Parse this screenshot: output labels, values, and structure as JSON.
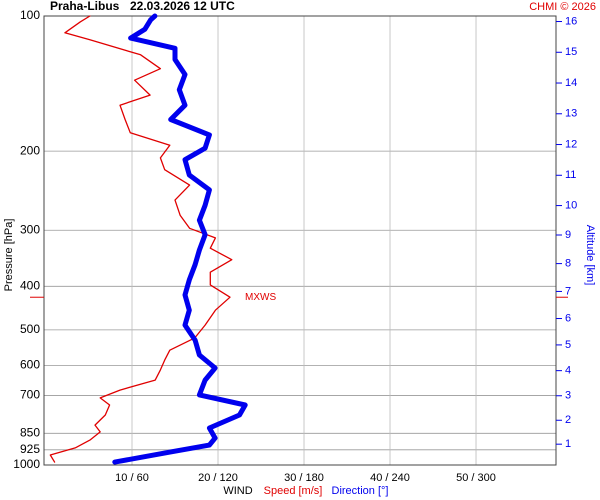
{
  "chart_data": {
    "type": "profile",
    "title": "Praha-Libus",
    "subtitle": "22.03.2026 12 UTC",
    "credit": "CHMI © 2026",
    "ylabel": "Pressure [hPa]",
    "y2label": "Altitude [km]",
    "xlabel": "WIND",
    "ylim": [
      1000,
      100
    ],
    "ylog": true,
    "yticks": [
      100,
      200,
      300,
      400,
      500,
      600,
      700,
      850,
      925,
      1000
    ],
    "y2ticks": [
      1,
      2,
      3,
      4,
      5,
      6,
      7,
      8,
      9,
      10,
      11,
      12,
      13,
      14,
      15,
      16
    ],
    "xlim": [
      0,
      59.3
    ],
    "x2lim": [
      0,
      355.8
    ],
    "xticks": [
      {
        "value": 10,
        "label": "10 / 60"
      },
      {
        "value": 20,
        "label": "20 / 120"
      },
      {
        "value": 30,
        "label": "30 / 180"
      },
      {
        "value": 40,
        "label": "40 / 240"
      },
      {
        "value": 50,
        "label": "50 / 300"
      }
    ],
    "grid": true,
    "series": [
      {
        "name": "Speed [m/s]",
        "color": "#e00000",
        "axis": "x",
        "pressure": [
          985,
          950,
          916,
          880,
          844,
          815,
          774,
          735,
          709,
          681,
          647,
          614,
          584,
          555,
          521,
          488,
          452,
          423,
          397,
          372,
          349,
          329,
          312,
          297,
          278,
          257,
          238,
          220,
          207,
          194,
          182,
          170,
          158,
          150,
          139,
          131,
          122,
          113,
          109,
          103,
          100
        ],
        "values": [
          1,
          0.5,
          3.4,
          5.1,
          6.3,
          5.7,
          6.9,
          7.4,
          6.3,
          8.6,
          12.7,
          13.3,
          13.8,
          14.4,
          17.3,
          18.5,
          19.7,
          21.4,
          19.1,
          19.1,
          21.6,
          19.1,
          19.7,
          16.7,
          15.6,
          15.0,
          16.7,
          13.8,
          13.3,
          14.4,
          9.8,
          9.2,
          8.6,
          12.1,
          10.3,
          13.3,
          11.0,
          5.1,
          2.2,
          4.0,
          5.1
        ]
      },
      {
        "name": "Direction [°]",
        "color": "#0000ee",
        "axis": "x2",
        "pressure": [
          985,
          935,
          903,
          871,
          827,
          774,
          735,
          698,
          647,
          608,
          569,
          527,
          488,
          452,
          418,
          387,
          358,
          332,
          307,
          285,
          264,
          244,
          226,
          209,
          197,
          184,
          170,
          158,
          146,
          135,
          125,
          118,
          112,
          107,
          102,
          100
        ],
        "values": [
          48,
          87,
          114,
          118,
          114,
          135,
          139,
          107,
          111,
          118,
          107,
          104,
          97,
          100,
          97,
          100,
          104,
          107,
          111,
          107,
          111,
          114,
          100,
          97,
          111,
          114,
          87,
          97,
          93,
          97,
          90,
          90,
          59,
          69,
          73,
          76
        ]
      }
    ],
    "annotations": [
      {
        "text": "MXWS",
        "pressure": 423,
        "speed": 21.4
      }
    ]
  }
}
